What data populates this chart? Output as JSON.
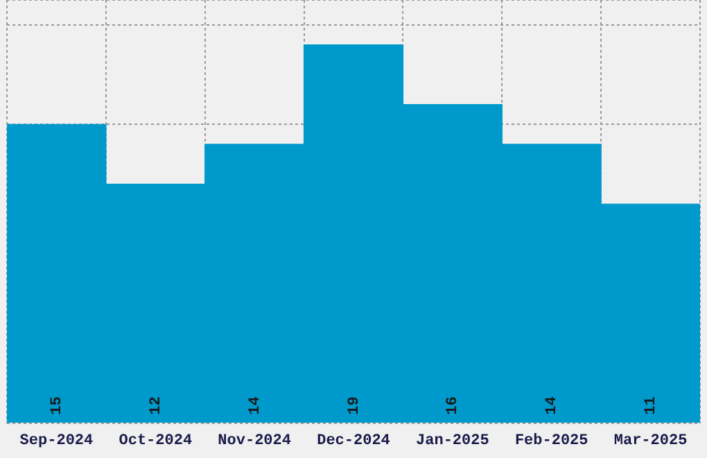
{
  "chart_data": {
    "type": "bar",
    "categories": [
      "Sep-2024",
      "Oct-2024",
      "Nov-2024",
      "Dec-2024",
      "Jan-2025",
      "Feb-2025",
      "Mar-2025"
    ],
    "values": [
      15,
      12,
      14,
      19,
      16,
      14,
      11
    ],
    "color": "#0099cc",
    "ylim": [
      0,
      21.25
    ],
    "tick_labels": "x",
    "grid": true,
    "data_labels": true
  }
}
